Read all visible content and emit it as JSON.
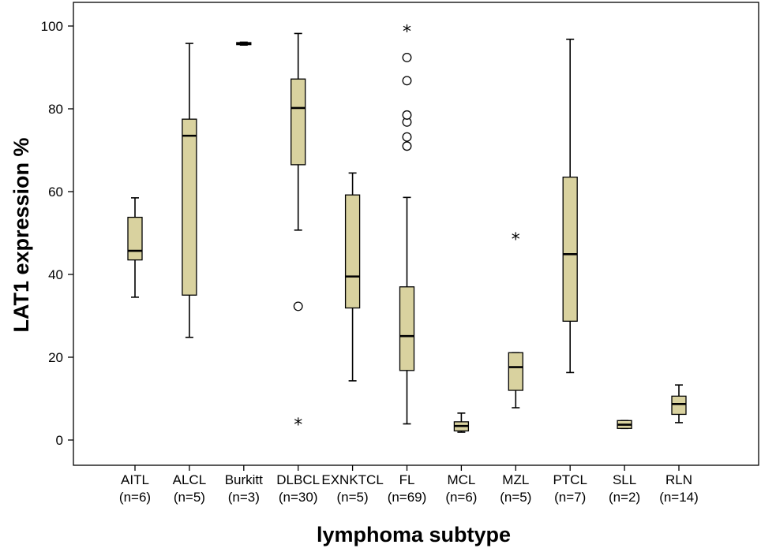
{
  "chart_data": {
    "type": "boxplot",
    "xlabel": "lymphoma subtype",
    "ylabel": "LAT1 expression %",
    "ylim": [
      0,
      100
    ],
    "yticks": [
      0,
      20,
      40,
      60,
      80,
      100
    ],
    "grid": false,
    "box_color": "#d9d29f",
    "categories": [
      {
        "name": "AITL",
        "n_label": "(n=6)",
        "min": 34.5,
        "q1": 43.5,
        "median": 45.7,
        "q3": 53.8,
        "max": 58.5,
        "outliers": [],
        "extremes": []
      },
      {
        "name": "ALCL",
        "n_label": "(n=5)",
        "min": 24.8,
        "q1": 35.0,
        "median": 73.5,
        "q3": 77.5,
        "max": 95.8,
        "outliers": [],
        "extremes": []
      },
      {
        "name": "Burkitt",
        "n_label": "(n=3)",
        "min": 95.4,
        "q1": 95.5,
        "median": 95.7,
        "q3": 96.0,
        "max": 96.1,
        "outliers": [],
        "extremes": []
      },
      {
        "name": "DLBCL",
        "n_label": "(n=30)",
        "min": 50.7,
        "q1": 66.5,
        "median": 80.2,
        "q3": 87.2,
        "max": 98.2,
        "outliers": [
          32.3
        ],
        "extremes": [
          4.4
        ]
      },
      {
        "name": "EXNKTCL",
        "n_label": "(n=5)",
        "min": 14.3,
        "q1": 31.9,
        "median": 39.5,
        "q3": 59.2,
        "max": 64.5,
        "outliers": [],
        "extremes": []
      },
      {
        "name": "FL",
        "n_label": "(n=69)",
        "min": 3.9,
        "q1": 16.8,
        "median": 25.1,
        "q3": 37.0,
        "max": 58.6,
        "outliers": [
          71.0,
          73.2,
          76.8,
          78.5,
          86.8,
          92.4
        ],
        "extremes": [
          99.3
        ]
      },
      {
        "name": "MCL",
        "n_label": "(n=6)",
        "min": 1.9,
        "q1": 2.2,
        "median": 3.4,
        "q3": 4.4,
        "max": 6.5,
        "outliers": [],
        "extremes": []
      },
      {
        "name": "MZL",
        "n_label": "(n=5)",
        "min": 7.8,
        "q1": 12.0,
        "median": 17.6,
        "q3": 21.1,
        "max": 21.1,
        "outliers": [],
        "extremes": [
          49.1
        ]
      },
      {
        "name": "PTCL",
        "n_label": "(n=7)",
        "min": 16.3,
        "q1": 28.7,
        "median": 44.9,
        "q3": 63.5,
        "max": 96.8,
        "outliers": [],
        "extremes": []
      },
      {
        "name": "SLL",
        "n_label": "(n=2)",
        "min": 2.8,
        "q1": 2.8,
        "median": 3.7,
        "q3": 4.7,
        "max": 4.7,
        "outliers": [],
        "extremes": []
      },
      {
        "name": "RLN",
        "n_label": "(n=14)",
        "min": 4.2,
        "q1": 6.2,
        "median": 8.7,
        "q3": 10.6,
        "max": 13.3,
        "outliers": [],
        "extremes": []
      }
    ]
  }
}
